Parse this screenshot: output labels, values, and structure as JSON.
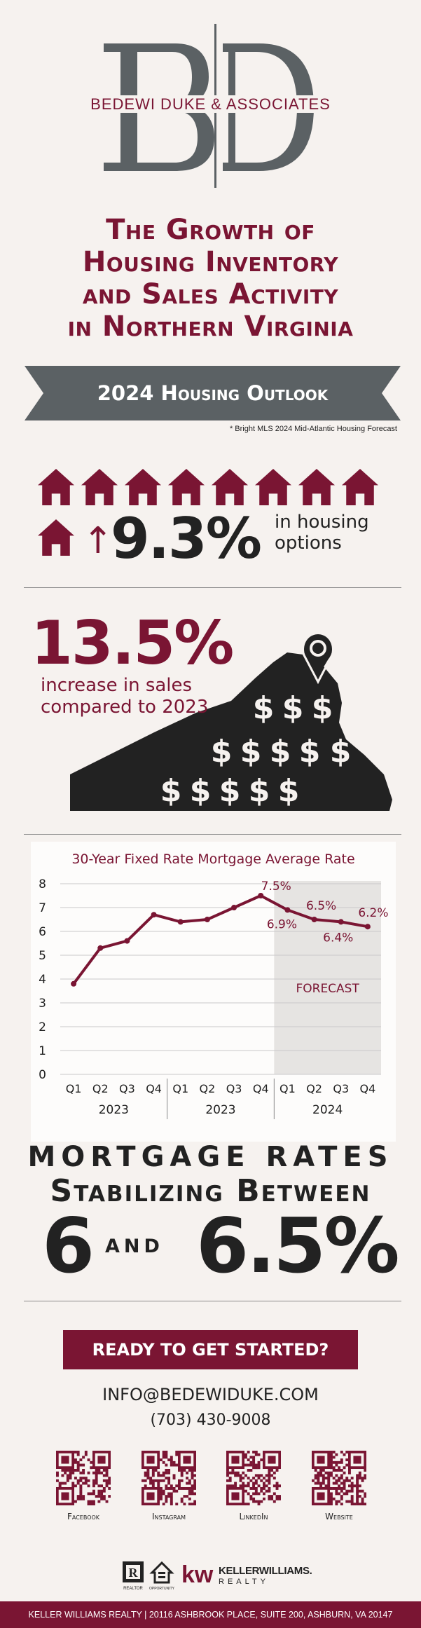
{
  "brand": {
    "firm_name": "BEDEWI DUKE & ASSOCIATES",
    "monogram": "B|D",
    "primary_color": "#7a1533",
    "dark_color": "#222222",
    "gray_color": "#5b6164"
  },
  "title": {
    "lines": [
      "The Growth of",
      "Housing Inventory",
      "and Sales Activity",
      "in Northern Virginia"
    ]
  },
  "banner": {
    "label": "2024 Housing Outlook"
  },
  "source": {
    "text": "*  Bright MLS 2024 Mid-Atlantic Housing Forecast"
  },
  "stat_inventory": {
    "value": "9.3%",
    "label_line1": "in housing",
    "label_line2": "options",
    "arrow": "↑",
    "icon": "house-icon"
  },
  "stat_sales": {
    "value": "13.5%",
    "label_line1": "increase in sales",
    "label_line2": "compared to 2023",
    "icon": "virginia-map-icon",
    "map_symbol": "$"
  },
  "chart_data": {
    "type": "line",
    "title": "30-Year Fixed Rate Mortgage Average Rate",
    "categories": [
      "Q1",
      "Q2",
      "Q3",
      "Q4",
      "Q1",
      "Q2",
      "Q3",
      "Q4",
      "Q1",
      "Q2",
      "Q3",
      "Q4"
    ],
    "groups": [
      {
        "label": "2023",
        "span": [
          0,
          3
        ]
      },
      {
        "label": "2023",
        "span": [
          4,
          7
        ]
      },
      {
        "label": "2024",
        "span": [
          8,
          11
        ]
      }
    ],
    "series": [
      {
        "values": [
          3.8,
          5.3,
          5.6,
          6.7,
          6.4,
          6.5,
          7.0,
          7.5,
          6.9,
          6.5,
          6.4,
          6.2
        ]
      }
    ],
    "data_labels": [
      {
        "index": 7,
        "text": "7.5%"
      },
      {
        "index": 8,
        "text": "6.9%"
      },
      {
        "index": 9,
        "text": "6.5%"
      },
      {
        "index": 10,
        "text": "6.4%"
      },
      {
        "index": 11,
        "text": "6.2%"
      }
    ],
    "ylim": [
      0,
      8
    ],
    "yticks": [
      "0",
      "1",
      "2",
      "3",
      "4",
      "5",
      "6",
      "7",
      "8"
    ],
    "grid": true,
    "forecast": {
      "start_index": 8,
      "label": "FORECAST"
    },
    "line_color": "#7a1533"
  },
  "stabilizing": {
    "line1": "Mortgage Rates",
    "line2": "Stabilizing Between",
    "low": "6",
    "connector": "and",
    "high": "6.5%"
  },
  "cta": {
    "button": "READY TO GET STARTED?",
    "email": "INFO@BEDEWIDUKE.COM",
    "phone": "(703) 430-9008"
  },
  "qr_codes": [
    {
      "label": "Facebook"
    },
    {
      "label": "Instagram"
    },
    {
      "label": "LinkedIn"
    },
    {
      "label": "Website"
    }
  ],
  "partner": {
    "name": "KELLERWILLIAMS.",
    "sub": "REALTY",
    "mark": "kw",
    "realtor_label": "REALTOR",
    "eho_label": "OPPORTUNITY"
  },
  "footer": {
    "text": "KELLER WILLIAMS REALTY | 20116 ASHBROOK PLACE, SUITE 200, ASHBURN, VA 20147"
  }
}
